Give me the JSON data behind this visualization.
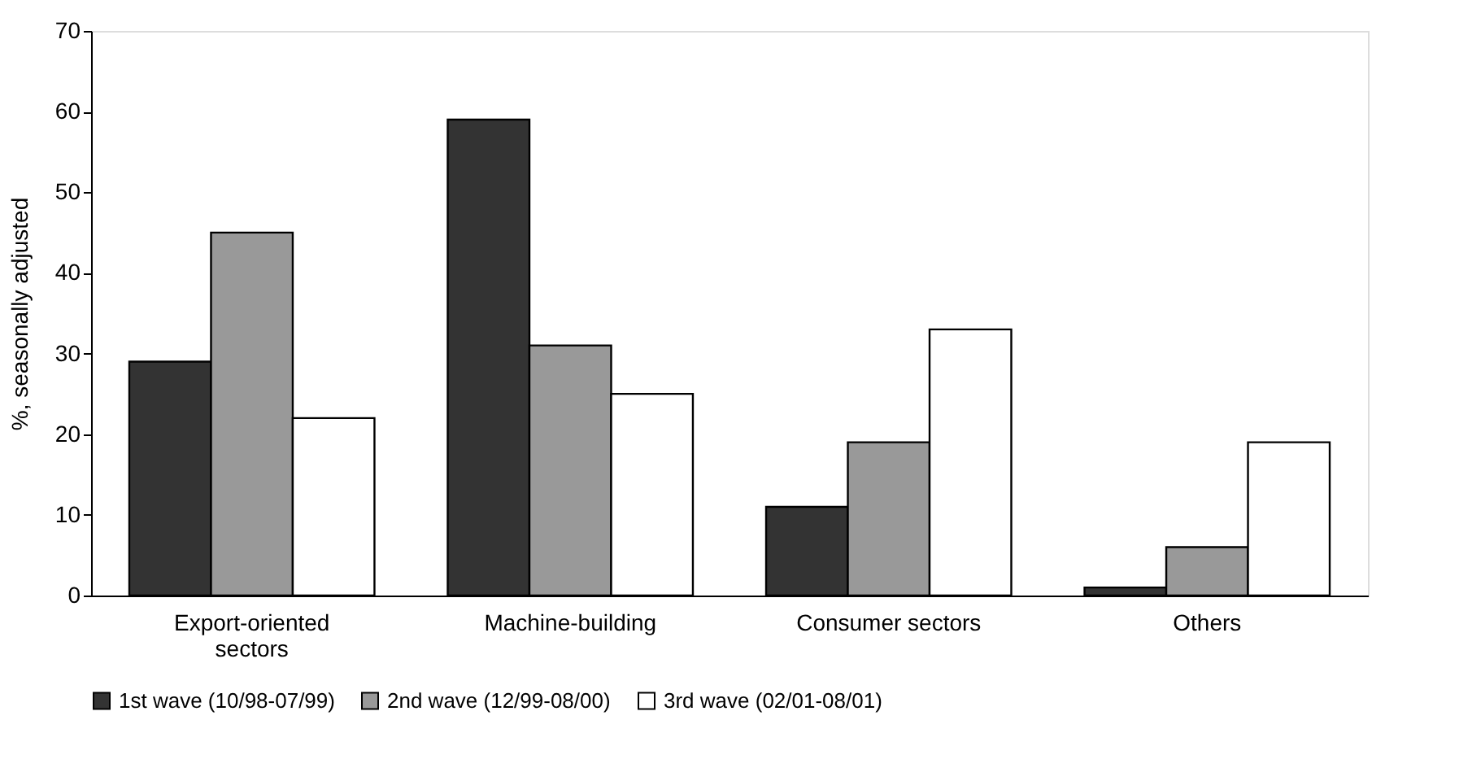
{
  "chart_data": {
    "type": "bar",
    "ylabel": "%, seasonally adjusted",
    "categories": [
      "Export-oriented sectors",
      "Machine-building",
      "Consumer sectors",
      "Others"
    ],
    "series": [
      {
        "name": "1st wave (10/98-07/99)",
        "color": "#333333",
        "values": [
          29,
          59,
          11,
          1
        ]
      },
      {
        "name": "2nd wave (12/99-08/00)",
        "color": "#999999",
        "values": [
          45,
          31,
          19,
          6
        ]
      },
      {
        "name": "3rd wave (02/01-08/01)",
        "color": "#ffffff",
        "values": [
          22,
          25,
          33,
          19
        ]
      }
    ],
    "ylim": [
      0,
      70
    ],
    "yticks": [
      0,
      10,
      20,
      30,
      40,
      50,
      60,
      70
    ],
    "grid": false,
    "legend": "bottom"
  }
}
